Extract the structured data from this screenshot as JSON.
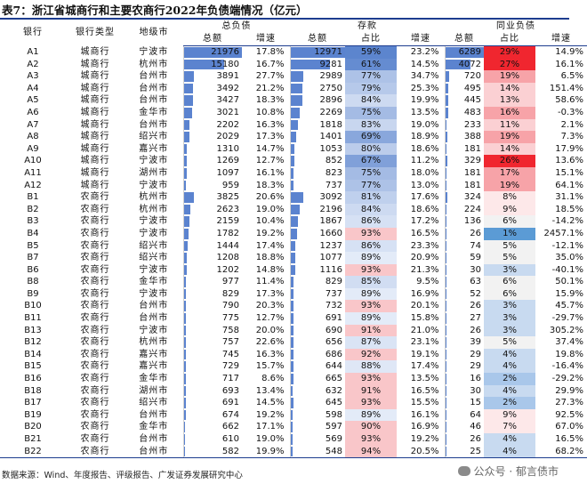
{
  "title": "表7：浙江省城商行和主要农商行2022年负债端情况（亿元）",
  "header": {
    "groups": {
      "liab": "总负债",
      "dep": "存款",
      "interbank": "同业负债"
    },
    "row1": [
      "银行",
      "银行类型",
      "地级市"
    ],
    "sub": {
      "total": "总额",
      "growth": "增速",
      "share": "占比"
    }
  },
  "rows": [
    {
      "name": "A1",
      "type": "城商行",
      "city": "宁波市",
      "liab": 21976,
      "liab_g": "17.8%",
      "dep": 12971,
      "dep_s": "59%",
      "dep_g": "23.2%",
      "ib": 6289,
      "ib_s": "29%",
      "ib_g": "14.9%"
    },
    {
      "name": "A2",
      "type": "城商行",
      "city": "杭州市",
      "liab": 15180,
      "liab_g": "16.7%",
      "dep": 9281,
      "dep_s": "61%",
      "dep_g": "14.5%",
      "ib": 4072,
      "ib_s": "27%",
      "ib_g": "16.1%"
    },
    {
      "name": "A3",
      "type": "城商行",
      "city": "台州市",
      "liab": 3891,
      "liab_g": "27.7%",
      "dep": 2989,
      "dep_s": "77%",
      "dep_g": "34.7%",
      "ib": 720,
      "ib_s": "19%",
      "ib_g": "6.5%"
    },
    {
      "name": "A4",
      "type": "城商行",
      "city": "台州市",
      "liab": 3492,
      "liab_g": "21.2%",
      "dep": 2750,
      "dep_s": "79%",
      "dep_g": "25.3%",
      "ib": 495,
      "ib_s": "14%",
      "ib_g": "151.4%"
    },
    {
      "name": "A5",
      "type": "城商行",
      "city": "台州市",
      "liab": 3427,
      "liab_g": "18.3%",
      "dep": 2896,
      "dep_s": "84%",
      "dep_g": "19.9%",
      "ib": 445,
      "ib_s": "13%",
      "ib_g": "58.6%"
    },
    {
      "name": "A6",
      "type": "城商行",
      "city": "金华市",
      "liab": 3021,
      "liab_g": "10.8%",
      "dep": 2269,
      "dep_s": "75%",
      "dep_g": "13.5%",
      "ib": 483,
      "ib_s": "16%",
      "ib_g": "-0.3%"
    },
    {
      "name": "A7",
      "type": "城商行",
      "city": "台州市",
      "liab": 2202,
      "liab_g": "16.3%",
      "dep": 1818,
      "dep_s": "83%",
      "dep_g": "19.0%",
      "ib": 233,
      "ib_s": "11%",
      "ib_g": "2.1%"
    },
    {
      "name": "A8",
      "type": "城商行",
      "city": "绍兴市",
      "liab": 2029,
      "liab_g": "17.3%",
      "dep": 1401,
      "dep_s": "69%",
      "dep_g": "18.9%",
      "ib": 388,
      "ib_s": "19%",
      "ib_g": "7.3%"
    },
    {
      "name": "A9",
      "type": "城商行",
      "city": "嘉兴市",
      "liab": 1310,
      "liab_g": "14.7%",
      "dep": 1053,
      "dep_s": "80%",
      "dep_g": "18.6%",
      "ib": 181,
      "ib_s": "14%",
      "ib_g": "17.9%"
    },
    {
      "name": "A10",
      "type": "城商行",
      "city": "宁波市",
      "liab": 1269,
      "liab_g": "12.7%",
      "dep": 852,
      "dep_s": "67%",
      "dep_g": "11.2%",
      "ib": 329,
      "ib_s": "26%",
      "ib_g": "13.6%"
    },
    {
      "name": "A11",
      "type": "城商行",
      "city": "湖州市",
      "liab": 1097,
      "liab_g": "16.1%",
      "dep": 823,
      "dep_s": "75%",
      "dep_g": "18.0%",
      "ib": 181,
      "ib_s": "17%",
      "ib_g": "15.1%"
    },
    {
      "name": "A12",
      "type": "城商行",
      "city": "宁波市",
      "liab": 959,
      "liab_g": "18.3%",
      "dep": 737,
      "dep_s": "77%",
      "dep_g": "13.0%",
      "ib": 181,
      "ib_s": "19%",
      "ib_g": "64.1%"
    },
    {
      "name": "B1",
      "type": "农商行",
      "city": "杭州市",
      "liab": 3825,
      "liab_g": "20.6%",
      "dep": 3092,
      "dep_s": "81%",
      "dep_g": "17.6%",
      "ib": 324,
      "ib_s": "8%",
      "ib_g": "31.1%"
    },
    {
      "name": "B2",
      "type": "农商行",
      "city": "杭州市",
      "liab": 2623,
      "liab_g": "19.0%",
      "dep": 2196,
      "dep_s": "84%",
      "dep_g": "18.6%",
      "ib": 224,
      "ib_s": "9%",
      "ib_g": "18.5%"
    },
    {
      "name": "B3",
      "type": "农商行",
      "city": "宁波市",
      "liab": 2159,
      "liab_g": "10.4%",
      "dep": 1867,
      "dep_s": "86%",
      "dep_g": "17.2%",
      "ib": 136,
      "ib_s": "6%",
      "ib_g": "-14.2%"
    },
    {
      "name": "B4",
      "type": "农商行",
      "city": "宁波市",
      "liab": 1782,
      "liab_g": "19.2%",
      "dep": 1660,
      "dep_s": "93%",
      "dep_g": "16.5%",
      "ib": 26,
      "ib_s": "1%",
      "ib_g": "2457.1%"
    },
    {
      "name": "B5",
      "type": "农商行",
      "city": "绍兴市",
      "liab": 1444,
      "liab_g": "17.4%",
      "dep": 1237,
      "dep_s": "86%",
      "dep_g": "23.3%",
      "ib": 74,
      "ib_s": "5%",
      "ib_g": "-12.1%"
    },
    {
      "name": "B7",
      "type": "农商行",
      "city": "绍兴市",
      "liab": 1208,
      "liab_g": "18.8%",
      "dep": 1077,
      "dep_s": "89%",
      "dep_g": "20.9%",
      "ib": 59,
      "ib_s": "5%",
      "ib_g": "35.0%"
    },
    {
      "name": "B6",
      "type": "农商行",
      "city": "宁波市",
      "liab": 1202,
      "liab_g": "14.8%",
      "dep": 1116,
      "dep_s": "93%",
      "dep_g": "21.3%",
      "ib": 30,
      "ib_s": "3%",
      "ib_g": "-40.1%"
    },
    {
      "name": "B8",
      "type": "农商行",
      "city": "金华市",
      "liab": 977,
      "liab_g": "11.4%",
      "dep": 829,
      "dep_s": "85%",
      "dep_g": "9.5%",
      "ib": 63,
      "ib_s": "6%",
      "ib_g": "50.1%"
    },
    {
      "name": "B9",
      "type": "农商行",
      "city": "宁波市",
      "liab": 829,
      "liab_g": "17.3%",
      "dep": 737,
      "dep_s": "89%",
      "dep_g": "16.9%",
      "ib": 52,
      "ib_s": "6%",
      "ib_g": "15.9%"
    },
    {
      "name": "B10",
      "type": "农商行",
      "city": "台州市",
      "liab": 790,
      "liab_g": "20.3%",
      "dep": 732,
      "dep_s": "93%",
      "dep_g": "20.1%",
      "ib": 26,
      "ib_s": "3%",
      "ib_g": "45.7%"
    },
    {
      "name": "B11",
      "type": "农商行",
      "city": "台州市",
      "liab": 775,
      "liab_g": "12.7%",
      "dep": 691,
      "dep_s": "89%",
      "dep_g": "15.8%",
      "ib": 27,
      "ib_s": "3%",
      "ib_g": "-29.7%"
    },
    {
      "name": "B13",
      "type": "农商行",
      "city": "宁波市",
      "liab": 758,
      "liab_g": "20.0%",
      "dep": 690,
      "dep_s": "91%",
      "dep_g": "21.0%",
      "ib": 26,
      "ib_s": "3%",
      "ib_g": "305.2%"
    },
    {
      "name": "B12",
      "type": "农商行",
      "city": "杭州市",
      "liab": 757,
      "liab_g": "22.6%",
      "dep": 656,
      "dep_s": "87%",
      "dep_g": "23.1%",
      "ib": 39,
      "ib_s": "5%",
      "ib_g": "37.4%"
    },
    {
      "name": "B14",
      "type": "农商行",
      "city": "嘉兴市",
      "liab": 745,
      "liab_g": "16.3%",
      "dep": 686,
      "dep_s": "92%",
      "dep_g": "19.1%",
      "ib": 29,
      "ib_s": "4%",
      "ib_g": "19.8%"
    },
    {
      "name": "B15",
      "type": "农商行",
      "city": "嘉兴市",
      "liab": 729,
      "liab_g": "15.7%",
      "dep": 644,
      "dep_s": "88%",
      "dep_g": "17.4%",
      "ib": 29,
      "ib_s": "4%",
      "ib_g": "-16.4%"
    },
    {
      "name": "B16",
      "type": "农商行",
      "city": "金华市",
      "liab": 717,
      "liab_g": "8.6%",
      "dep": 665,
      "dep_s": "93%",
      "dep_g": "13.5%",
      "ib": 16,
      "ib_s": "2%",
      "ib_g": "-29.2%"
    },
    {
      "name": "B18",
      "type": "农商行",
      "city": "湖州市",
      "liab": 693,
      "liab_g": "13.4%",
      "dep": 632,
      "dep_s": "91%",
      "dep_g": "16.5%",
      "ib": 30,
      "ib_s": "4%",
      "ib_g": "29.9%"
    },
    {
      "name": "B17",
      "type": "农商行",
      "city": "绍兴市",
      "liab": 691,
      "liab_g": "14.5%",
      "dep": 645,
      "dep_s": "93%",
      "dep_g": "15.5%",
      "ib": 15,
      "ib_s": "2%",
      "ib_g": "27.3%"
    },
    {
      "name": "B19",
      "type": "农商行",
      "city": "台州市",
      "liab": 674,
      "liab_g": "19.2%",
      "dep": 598,
      "dep_s": "89%",
      "dep_g": "16.1%",
      "ib": 64,
      "ib_s": "9%",
      "ib_g": "92.5%"
    },
    {
      "name": "B20",
      "type": "农商行",
      "city": "金华市",
      "liab": 662,
      "liab_g": "17.1%",
      "dep": 597,
      "dep_s": "90%",
      "dep_g": "16.9%",
      "ib": 46,
      "ib_s": "7%",
      "ib_g": "67.0%"
    },
    {
      "name": "B21",
      "type": "农商行",
      "city": "台州市",
      "liab": 610,
      "liab_g": "19.0%",
      "dep": 569,
      "dep_s": "93%",
      "dep_g": "19.2%",
      "ib": 26,
      "ib_s": "4%",
      "ib_g": "16.5%"
    },
    {
      "name": "B22",
      "type": "农商行",
      "city": "台州市",
      "liab": 582,
      "liab_g": "19.9%",
      "dep": 548,
      "dep_s": "94%",
      "dep_g": "20.5%",
      "ib": 25,
      "ib_s": "4%",
      "ib_g": "68.2%"
    }
  ],
  "source": "数据来源：Wind、年度报告、评级报告、广发证券发展研究中心",
  "watermark": "公众号 · 郁言债市",
  "colors": {
    "title_line": "#1d3d8f",
    "bar_blue": "#4a78c9",
    "bar_blue_light": "#c9d6ef",
    "red_high": "#f0262f",
    "red_low": "#fbe2e3",
    "blue_low": "#5b9bd5"
  }
}
